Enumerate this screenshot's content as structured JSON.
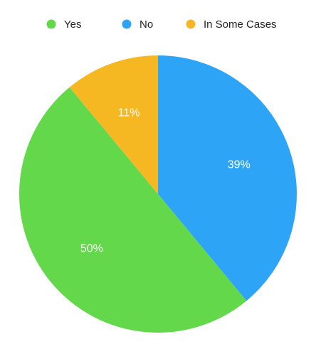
{
  "chart_data": {
    "type": "pie",
    "categories": [
      "Yes",
      "No",
      "In Some Cases"
    ],
    "values": [
      50,
      39,
      11
    ],
    "value_labels": [
      "50%",
      "39%",
      "11%"
    ],
    "colors": [
      "#62d84a",
      "#2ea4f7",
      "#f5b822"
    ],
    "legend": "top"
  }
}
